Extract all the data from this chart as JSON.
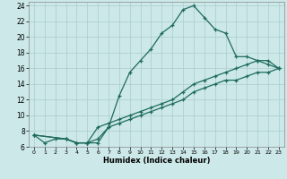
{
  "xlabel": "Humidex (Indice chaleur)",
  "bg_color": "#cce8e8",
  "grid_color": "#aacccc",
  "line_color": "#1e6b5e",
  "xlim": [
    -0.5,
    23.5
  ],
  "ylim": [
    6,
    24.5
  ],
  "xticks": [
    0,
    1,
    2,
    3,
    4,
    5,
    6,
    7,
    8,
    9,
    10,
    11,
    12,
    13,
    14,
    15,
    16,
    17,
    18,
    19,
    20,
    21,
    22,
    23
  ],
  "yticks": [
    6,
    8,
    10,
    12,
    14,
    16,
    18,
    20,
    22,
    24
  ],
  "line1_x": [
    0,
    1,
    2,
    3,
    4,
    5,
    6,
    7,
    8,
    9,
    10,
    11,
    12,
    13,
    14,
    15,
    16,
    17,
    18,
    19,
    20,
    21,
    22,
    23
  ],
  "line1_y": [
    7.5,
    6.5,
    7.0,
    7.0,
    6.5,
    6.5,
    6.5,
    8.5,
    12.5,
    15.5,
    17.0,
    18.5,
    20.5,
    21.5,
    23.5,
    24.0,
    22.5,
    21.0,
    20.5,
    17.5,
    17.5,
    17.0,
    16.5,
    16.0
  ],
  "line2_x": [
    0,
    3,
    4,
    5,
    6,
    7,
    8,
    9,
    10,
    11,
    12,
    13,
    14,
    15,
    16,
    17,
    18,
    19,
    20,
    21,
    22,
    23
  ],
  "line2_y": [
    7.5,
    7.0,
    6.5,
    6.5,
    7.0,
    8.5,
    9.0,
    9.5,
    10.0,
    10.5,
    11.0,
    11.5,
    12.0,
    13.0,
    13.5,
    14.0,
    14.5,
    14.5,
    15.0,
    15.5,
    15.5,
    16.0
  ],
  "line3_x": [
    0,
    3,
    4,
    5,
    6,
    7,
    8,
    9,
    10,
    11,
    12,
    13,
    14,
    15,
    16,
    17,
    18,
    19,
    20,
    21,
    22,
    23
  ],
  "line3_y": [
    7.5,
    7.0,
    6.5,
    6.5,
    8.5,
    9.0,
    9.5,
    10.0,
    10.5,
    11.0,
    11.5,
    12.0,
    13.0,
    14.0,
    14.5,
    15.0,
    15.5,
    16.0,
    16.5,
    17.0,
    17.0,
    16.0
  ]
}
